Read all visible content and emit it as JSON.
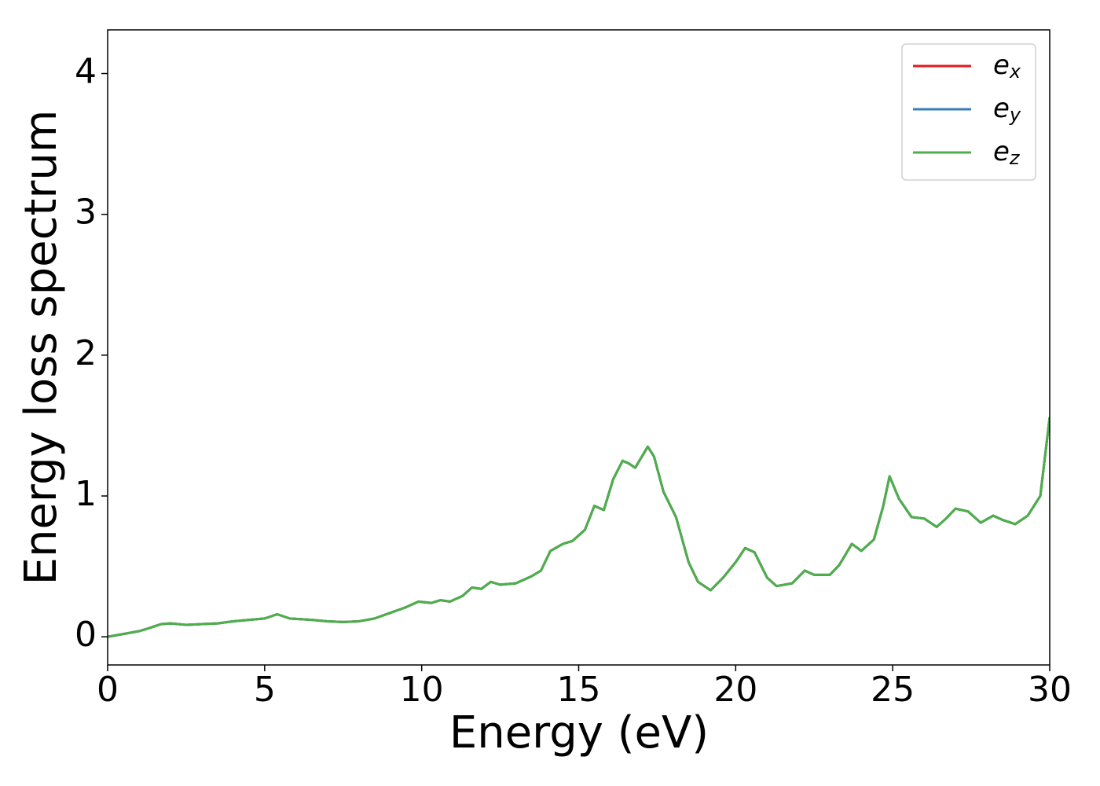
{
  "chart_data": {
    "type": "line",
    "x_label": "Energy (eV)",
    "y_label": "Energy loss spectrum",
    "xlim": [
      0,
      30
    ],
    "ylim": [
      -0.2,
      4.31
    ],
    "xticks": [
      0,
      5,
      10,
      15,
      20,
      25,
      30
    ],
    "yticks": [
      0,
      1,
      2,
      3,
      4
    ],
    "legend": "upper right",
    "grid": false,
    "x": [
      0,
      0.5,
      1.0,
      1.3,
      1.7,
      2.0,
      2.5,
      3.0,
      3.5,
      4.0,
      4.5,
      5.0,
      5.4,
      5.8,
      6.5,
      7.0,
      7.5,
      8.0,
      8.5,
      9.0,
      9.5,
      9.9,
      10.3,
      10.6,
      10.9,
      11.3,
      11.6,
      11.9,
      12.2,
      12.5,
      13.0,
      13.5,
      13.8,
      14.1,
      14.5,
      14.8,
      15.2,
      15.5,
      15.8,
      16.1,
      16.4,
      16.6,
      16.8,
      17.2,
      17.4,
      17.7,
      18.1,
      18.5,
      18.8,
      19.2,
      19.6,
      20.0,
      20.3,
      20.6,
      21.0,
      21.3,
      21.8,
      22.2,
      22.5,
      23.0,
      23.3,
      23.7,
      24.0,
      24.4,
      24.7,
      24.9,
      25.2,
      25.6,
      26.0,
      26.4,
      26.7,
      27.0,
      27.4,
      27.8,
      28.2,
      28.5,
      28.9,
      29.3,
      29.7,
      30.0
    ],
    "series": [
      {
        "name": "ex",
        "color": "#e41a1c",
        "values": [
          0.0,
          0.02,
          0.04,
          0.06,
          0.09,
          0.095,
          0.085,
          0.09,
          0.095,
          0.11,
          0.12,
          0.13,
          0.16,
          0.13,
          0.12,
          0.11,
          0.105,
          0.11,
          0.13,
          0.17,
          0.21,
          0.25,
          0.24,
          0.26,
          0.25,
          0.29,
          0.35,
          0.34,
          0.39,
          0.37,
          0.38,
          0.43,
          0.47,
          0.61,
          0.66,
          0.68,
          0.76,
          0.93,
          0.9,
          1.12,
          1.25,
          1.23,
          1.2,
          1.35,
          1.28,
          1.03,
          0.85,
          0.53,
          0.39,
          0.33,
          0.42,
          0.53,
          0.63,
          0.6,
          0.42,
          0.36,
          0.38,
          0.47,
          0.44,
          0.44,
          0.51,
          0.66,
          0.61,
          0.69,
          0.93,
          1.14,
          0.98,
          0.85,
          0.84,
          0.78,
          0.84,
          0.91,
          0.89,
          0.81,
          0.86,
          0.83,
          0.8,
          0.86,
          1.0,
          1.56
        ]
      },
      {
        "name": "ey",
        "color": "#377eb8",
        "values": [
          0.0,
          0.02,
          0.04,
          0.06,
          0.09,
          0.095,
          0.085,
          0.09,
          0.095,
          0.11,
          0.12,
          0.13,
          0.16,
          0.13,
          0.12,
          0.11,
          0.105,
          0.11,
          0.13,
          0.17,
          0.21,
          0.25,
          0.24,
          0.26,
          0.25,
          0.29,
          0.35,
          0.34,
          0.39,
          0.37,
          0.38,
          0.43,
          0.47,
          0.61,
          0.66,
          0.68,
          0.76,
          0.93,
          0.9,
          1.12,
          1.25,
          1.23,
          1.2,
          1.35,
          1.28,
          1.03,
          0.85,
          0.53,
          0.39,
          0.33,
          0.42,
          0.53,
          0.63,
          0.6,
          0.42,
          0.36,
          0.38,
          0.47,
          0.44,
          0.44,
          0.51,
          0.66,
          0.61,
          0.69,
          0.93,
          1.14,
          0.98,
          0.85,
          0.84,
          0.78,
          0.84,
          0.91,
          0.89,
          0.81,
          0.86,
          0.83,
          0.8,
          0.86,
          1.0,
          1.56
        ]
      },
      {
        "name": "ez",
        "color": "#4daf4a",
        "values": [
          0.0,
          0.02,
          0.04,
          0.06,
          0.09,
          0.095,
          0.085,
          0.09,
          0.095,
          0.11,
          0.12,
          0.13,
          0.16,
          0.13,
          0.12,
          0.11,
          0.105,
          0.11,
          0.13,
          0.17,
          0.21,
          0.25,
          0.24,
          0.26,
          0.25,
          0.29,
          0.35,
          0.34,
          0.39,
          0.37,
          0.38,
          0.43,
          0.47,
          0.61,
          0.66,
          0.68,
          0.76,
          0.93,
          0.9,
          1.12,
          1.25,
          1.23,
          1.2,
          1.35,
          1.28,
          1.03,
          0.85,
          0.53,
          0.39,
          0.33,
          0.42,
          0.53,
          0.63,
          0.6,
          0.42,
          0.36,
          0.38,
          0.47,
          0.44,
          0.44,
          0.51,
          0.66,
          0.61,
          0.69,
          0.93,
          1.14,
          0.98,
          0.85,
          0.84,
          0.78,
          0.84,
          0.91,
          0.89,
          0.81,
          0.86,
          0.83,
          0.8,
          0.86,
          1.0,
          1.56
        ]
      }
    ]
  }
}
